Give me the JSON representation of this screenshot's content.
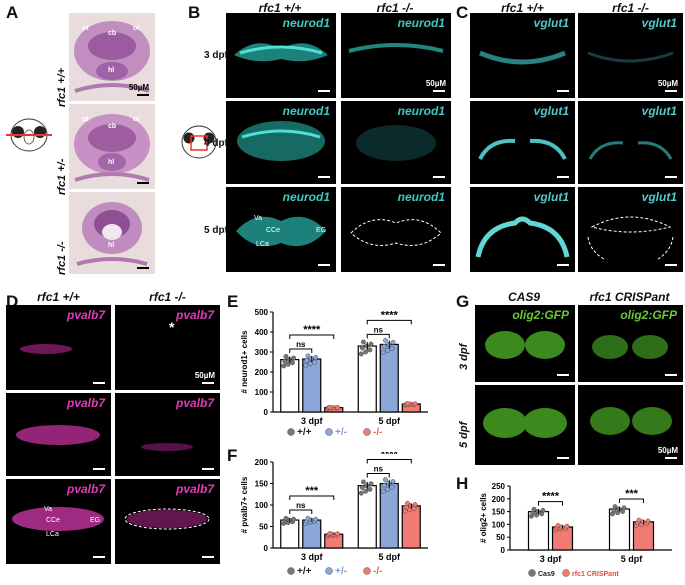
{
  "colors": {
    "wt": "#ffffff",
    "het": "#8aa7d8",
    "mut": "#ef7b73",
    "het_text": "#7d9ad1",
    "mut_text": "#e8665c",
    "neurod1": "#3fc9c0",
    "vglut1": "#57c8c8",
    "pvalb7": "#e23ab7",
    "olig2": "#6ac736",
    "histo": "#c997c9",
    "cas9_dot": "#777777",
    "crispant_text": "#e24a40"
  },
  "panels": {
    "A": {
      "letter": "A",
      "genotypes": [
        "rfc1 +/+",
        "rfc1 +/-",
        "rfc1 -/-"
      ],
      "labels_row1": [
        "ot",
        "cb",
        "ot",
        "hl"
      ],
      "labels_row2": [
        "ot",
        "cb",
        "ot",
        "hl"
      ],
      "labels_row3": [
        "hl"
      ],
      "scale": "50µM"
    },
    "B": {
      "letter": "B",
      "col_headers": [
        "rfc1 +/+",
        "rfc1 -/-"
      ],
      "rows": [
        "3 dpf",
        "4 dpf",
        "5 dpf"
      ],
      "gene": "neurod1",
      "scale": "50µM",
      "annotations": [
        "Va",
        "CCe",
        "LCa",
        "EG"
      ]
    },
    "C": {
      "letter": "C",
      "col_headers": [
        "rfc1 +/+",
        "rfc1 -/-"
      ],
      "gene": "vglut1",
      "scale": "50µM"
    },
    "D": {
      "letter": "D",
      "col_headers": [
        "rfc1 +/+",
        "rfc1 -/-"
      ],
      "gene": "pvalb7",
      "scale": "50µM",
      "asterisk": "*",
      "annotations": [
        "Va",
        "CCe",
        "EG",
        "LCa"
      ]
    },
    "E": {
      "letter": "E"
    },
    "F": {
      "letter": "F"
    },
    "G": {
      "letter": "G",
      "col_headers": [
        "CAS9",
        "rfc1 CRISPant"
      ],
      "rows": [
        "3 dpf",
        "5 dpf"
      ],
      "gene": "olig2:GFP",
      "scale": "50µM"
    },
    "H": {
      "letter": "H"
    }
  },
  "legend_genotype": [
    "+/+",
    "+/-",
    "-/-"
  ],
  "legend_H": [
    "Cas9",
    "rfc1 CRISPant"
  ],
  "chart_data": [
    {
      "id": "E",
      "type": "bar",
      "ylabel": "# neurod1+ cells",
      "ylim": [
        0,
        500
      ],
      "yticks": [
        0,
        100,
        200,
        300,
        400,
        500
      ],
      "categories": [
        "3 dpf",
        "5 dpf"
      ],
      "series": [
        {
          "name": "+/+",
          "values": [
            262,
            330
          ]
        },
        {
          "name": "+/-",
          "values": [
            265,
            338
          ]
        },
        {
          "name": "-/-",
          "values": [
            22,
            40
          ]
        }
      ],
      "significance": [
        {
          "label": "ns",
          "group": 0
        },
        {
          "label": "****",
          "group": 0
        },
        {
          "label": "ns",
          "group": 1
        },
        {
          "label": "****",
          "group": 1
        }
      ]
    },
    {
      "id": "F",
      "type": "bar",
      "ylabel": "# pvalb7+ cells",
      "ylim": [
        0,
        200
      ],
      "yticks": [
        0,
        50,
        100,
        150,
        200
      ],
      "categories": [
        "3 dpf",
        "5 dpf"
      ],
      "series": [
        {
          "name": "+/+",
          "values": [
            65,
            145
          ]
        },
        {
          "name": "+/-",
          "values": [
            65,
            150
          ]
        },
        {
          "name": "-/-",
          "values": [
            32,
            98
          ]
        }
      ],
      "significance": [
        {
          "label": "ns",
          "group": 0
        },
        {
          "label": "***",
          "group": 0
        },
        {
          "label": "ns",
          "group": 1
        },
        {
          "label": "****",
          "group": 1
        }
      ]
    },
    {
      "id": "H",
      "type": "bar",
      "ylabel": "# olig2+ cells",
      "ylim": [
        0,
        250
      ],
      "yticks": [
        0,
        50,
        100,
        150,
        200,
        250
      ],
      "categories": [
        "3 dpf",
        "5 dpf"
      ],
      "series": [
        {
          "name": "Cas9",
          "values": [
            150,
            160
          ]
        },
        {
          "name": "rfc1 CRISPant",
          "values": [
            90,
            110
          ]
        }
      ],
      "significance": [
        {
          "label": "****",
          "group": 0
        },
        {
          "label": "***",
          "group": 1
        }
      ]
    }
  ]
}
